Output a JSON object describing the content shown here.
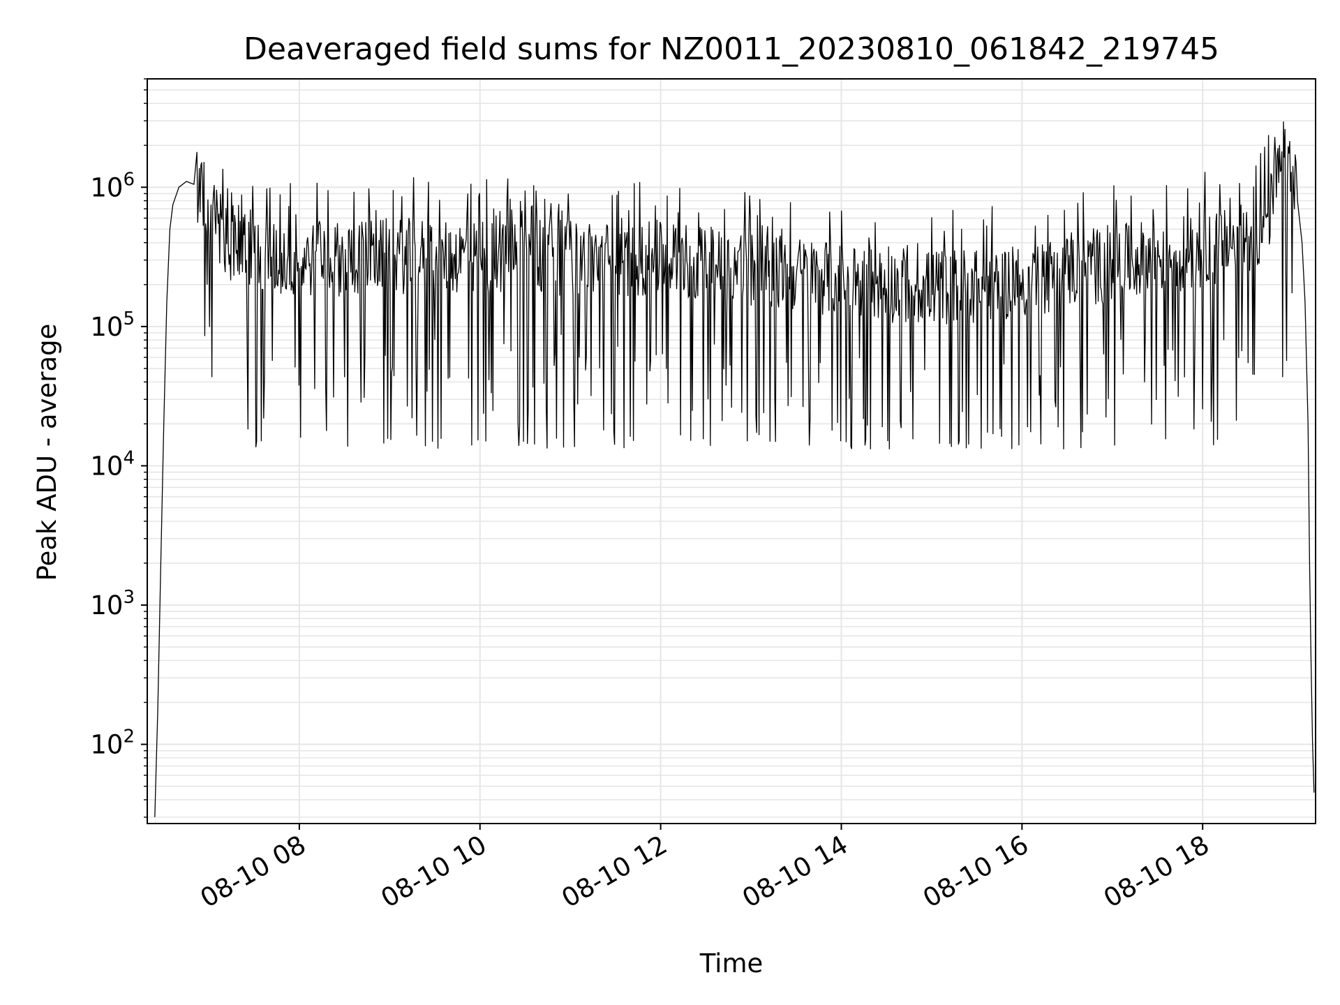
{
  "chart_data": {
    "type": "line",
    "title": "Deaveraged field sums for NZ0011_20230810_061842_219745",
    "xlabel": "Time",
    "ylabel": "Peak ADU - average",
    "xscale": "time",
    "yscale": "log",
    "xlim": [
      "2023-08-10 06:19",
      "2023-08-10 19:15"
    ],
    "ylim": [
      27,
      6000000
    ],
    "x_ticks": [
      {
        "t": "2023-08-10 08:00",
        "label": "08-10 08"
      },
      {
        "t": "2023-08-10 10:00",
        "label": "08-10 10"
      },
      {
        "t": "2023-08-10 12:00",
        "label": "08-10 12"
      },
      {
        "t": "2023-08-10 14:00",
        "label": "08-10 14"
      },
      {
        "t": "2023-08-10 16:00",
        "label": "08-10 16"
      },
      {
        "t": "2023-08-10 18:00",
        "label": "08-10 18"
      }
    ],
    "y_ticks": [
      {
        "value": 100,
        "base": "10",
        "exp": "2"
      },
      {
        "value": 1000,
        "base": "10",
        "exp": "3"
      },
      {
        "value": 10000,
        "base": "10",
        "exp": "4"
      },
      {
        "value": 100000,
        "base": "10",
        "exp": "5"
      },
      {
        "value": 1000000,
        "base": "10",
        "exp": "6"
      }
    ],
    "grid": true,
    "line_color": "#000000",
    "grid_color": "#e6e6e6",
    "series": [
      {
        "baseline": {
          "x": [
            "2023-08-10 06:24",
            "2023-08-10 06:26",
            "2023-08-10 06:28",
            "2023-08-10 06:30",
            "2023-08-10 06:32",
            "2023-08-10 06:34",
            "2023-08-10 06:36",
            "2023-08-10 06:40",
            "2023-08-10 06:45",
            "2023-08-10 06:50",
            "2023-08-10 06:55",
            "2023-08-10 07:00",
            "2023-08-10 07:10",
            "2023-08-10 07:20",
            "2023-08-10 07:40",
            "2023-08-10 08:00",
            "2023-08-10 09:00",
            "2023-08-10 10:00",
            "2023-08-10 11:00",
            "2023-08-10 12:00",
            "2023-08-10 13:00",
            "2023-08-10 14:00",
            "2023-08-10 14:30",
            "2023-08-10 15:00",
            "2023-08-10 15:30",
            "2023-08-10 16:00",
            "2023-08-10 16:30",
            "2023-08-10 17:00",
            "2023-08-10 17:30",
            "2023-08-10 18:00",
            "2023-08-10 18:20",
            "2023-08-10 18:30",
            "2023-08-10 18:40",
            "2023-08-10 18:45",
            "2023-08-10 18:48",
            "2023-08-10 18:51",
            "2023-08-10 18:54",
            "2023-08-10 18:57",
            "2023-08-10 19:00",
            "2023-08-10 19:03",
            "2023-08-10 19:06",
            "2023-08-10 19:08",
            "2023-08-10 19:10",
            "2023-08-10 19:11",
            "2023-08-10 19:12",
            "2023-08-10 19:13",
            "2023-08-10 19:14"
          ],
          "y": [
            30,
            180,
            2000,
            20000,
            150000,
            500000,
            750000,
            1000000,
            1100000,
            1050000,
            950000,
            700000,
            450000,
            350000,
            300000,
            300000,
            320000,
            320000,
            310000,
            300000,
            260000,
            220000,
            200000,
            190000,
            200000,
            210000,
            250000,
            280000,
            320000,
            350000,
            380000,
            420000,
            520000,
            700000,
            950000,
            1300000,
            1500000,
            1400000,
            1100000,
            800000,
            400000,
            150000,
            20000,
            2000,
            400,
            100,
            45
          ]
        },
        "noise": {
          "x_range": [
            "2023-08-10 06:52",
            "2023-08-10 19:02"
          ],
          "samples": 1400,
          "dip_down_to": 13000,
          "spike_up_to": 3300000
        }
      }
    ]
  }
}
